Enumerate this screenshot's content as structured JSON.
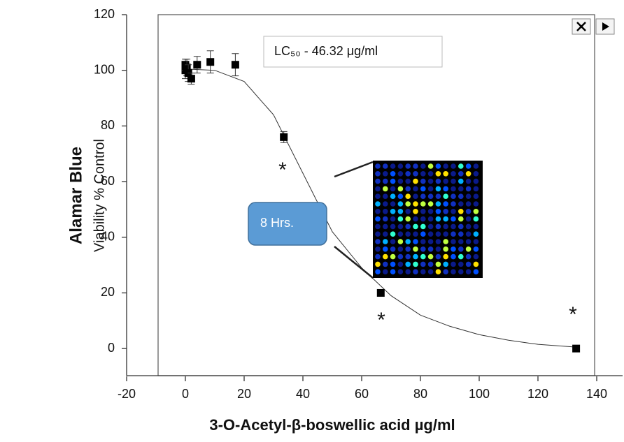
{
  "chart_data": {
    "type": "scatter",
    "title": "Alamar Blue",
    "x_label": "3-O-Acetyl-β-boswellic acid µg/ml",
    "y_label": "Viability % Control",
    "x": [
      0,
      0,
      0.5,
      1,
      2,
      4,
      8.5,
      17,
      33.5,
      66.5,
      133
    ],
    "values": [
      100,
      102,
      101,
      99,
      97,
      102,
      103,
      102,
      76,
      20,
      0
    ],
    "errors": [
      3,
      2,
      3,
      3,
      2,
      3,
      4,
      4,
      2,
      0,
      0
    ],
    "color": "#000000",
    "fit": {
      "x": [
        0,
        10,
        20,
        30,
        40,
        50,
        60,
        70,
        80,
        90,
        100,
        110,
        120,
        133
      ],
      "values": [
        100.5,
        100,
        96,
        84,
        63,
        42,
        29,
        19,
        12,
        8,
        5,
        3,
        1.5,
        0.5
      ]
    },
    "xlim": [
      -20,
      140
    ],
    "ylim": [
      -10,
      120
    ],
    "xticks": [
      -20,
      0,
      20,
      40,
      60,
      80,
      100,
      120,
      140
    ],
    "yticks": [
      0,
      20,
      40,
      60,
      80,
      100,
      120
    ],
    "annotations": [
      "LC₅₀ - 46.32 μg/ml",
      "8 Hrs.",
      "*",
      "*",
      "*"
    ]
  }
}
